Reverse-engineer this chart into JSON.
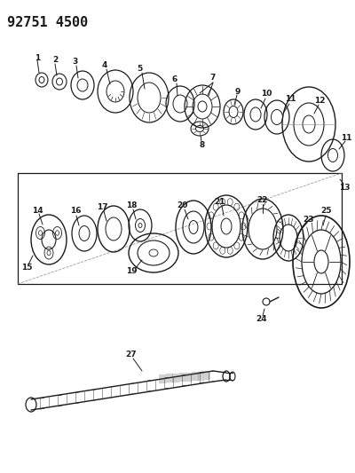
{
  "title": "92751 4500",
  "bg_color": "#ffffff",
  "line_color": "#1a1a1a",
  "fig_width": 4.0,
  "fig_height": 5.33,
  "dpi": 100
}
